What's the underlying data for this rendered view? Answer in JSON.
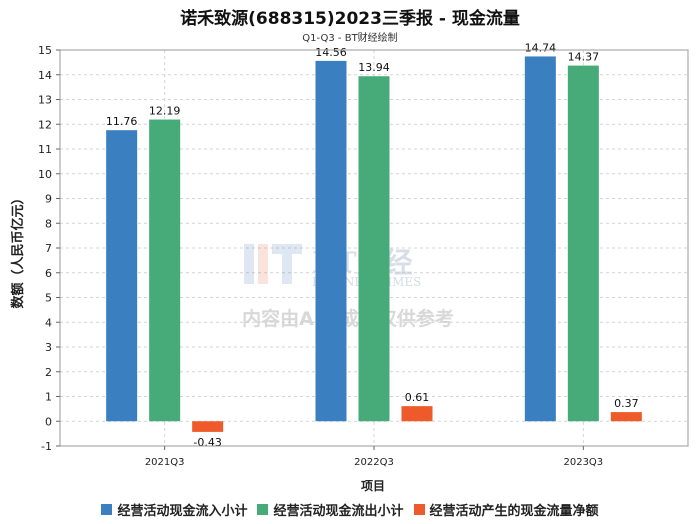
{
  "chart_data": {
    "type": "bar",
    "title": "诺禾致源(688315)2023三季报 - 现金流量",
    "subtitle": "Q1-Q3 - BT财经绘制",
    "xlabel": "项目",
    "ylabel": "数额（人民币亿元）",
    "categories": [
      "2021Q3",
      "2022Q3",
      "2023Q3"
    ],
    "ylim": [
      -1,
      15
    ],
    "yticks": [
      -1,
      0,
      1,
      2,
      3,
      4,
      5,
      6,
      7,
      8,
      9,
      10,
      11,
      12,
      13,
      14,
      15
    ],
    "grid": true,
    "legend_position": "bottom",
    "series": [
      {
        "name": "经营活动现金流入小计",
        "color": "#3a80c0",
        "values": [
          11.76,
          14.56,
          14.74
        ],
        "labels": [
          "11.76",
          "14.56",
          "14.74"
        ]
      },
      {
        "name": "经营活动现金流出小计",
        "color": "#46ab78",
        "values": [
          12.19,
          13.94,
          14.37
        ],
        "labels": [
          "12.19",
          "13.94",
          "14.37"
        ]
      },
      {
        "name": "经营活动产生的现金流量净额",
        "color": "#ee5a2a",
        "values": [
          -0.43,
          0.61,
          0.37
        ],
        "labels": [
          "-0.43",
          "0.61",
          "0.37"
        ]
      }
    ]
  },
  "watermark": {
    "brand": "BT财经",
    "brand_en": "BUSINESSTIMES",
    "notice": "内容由AI生成，仅供参考"
  }
}
